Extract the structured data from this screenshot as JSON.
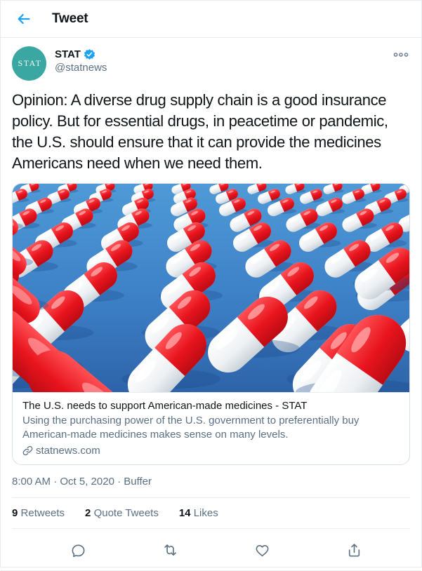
{
  "header": {
    "title": "Tweet"
  },
  "tweet": {
    "author": {
      "name": "STAT",
      "handle": "@statnews",
      "avatar_text": "STAT"
    },
    "text": "Opinion: A diverse drug supply chain is a good insurance policy. But for essential drugs, in peacetime or pandemic, the U.S. should ensure that it can provide the medicines Americans need when we need them.",
    "card": {
      "title": "The U.S. needs to support American-made medicines - STAT",
      "description": "Using the purchasing power of the U.S. government to preferentially buy American-made medicines makes sense on many levels.",
      "domain": "statnews.com"
    },
    "timestamp": "8:00 AM · Oct 5, 2020 · Buffer",
    "stats": [
      {
        "count": "9",
        "label": "Retweets"
      },
      {
        "count": "2",
        "label": "Quote Tweets"
      },
      {
        "count": "14",
        "label": "Likes"
      }
    ]
  },
  "colors": {
    "accent": "#1da1f2",
    "text": "#0f1419",
    "secondary": "#5b7083",
    "divider": "#ebeef0",
    "avatar_teal": "#3aa7a2",
    "pill_red": "#e8141d",
    "ground_blue": "#3f82c6"
  }
}
